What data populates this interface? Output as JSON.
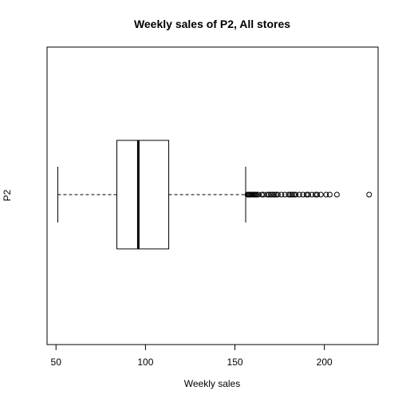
{
  "chart_data": {
    "type": "boxplot",
    "orientation": "horizontal",
    "title": "Weekly sales of P2, All stores",
    "xlabel": "Weekly sales",
    "ylabel": "P2",
    "xlim": [
      45,
      230
    ],
    "x_ticks": [
      50,
      100,
      150,
      200
    ],
    "x_tick_labels": [
      "50",
      "100",
      "150",
      "200"
    ],
    "box": {
      "whisker_low": 51,
      "q1": 84,
      "median": 96,
      "q3": 113,
      "whisker_high": 156
    },
    "outliers": [
      157,
      157.5,
      158,
      158.5,
      159,
      159.5,
      160,
      160.5,
      161,
      161.5,
      162,
      163,
      165,
      166,
      168,
      169,
      170,
      171,
      172,
      173,
      174,
      176,
      178,
      180,
      181,
      182,
      183,
      184,
      186,
      188,
      190,
      191,
      193,
      195,
      196,
      198,
      201,
      203,
      207,
      225
    ],
    "grid": false,
    "line_color": "#000000"
  }
}
